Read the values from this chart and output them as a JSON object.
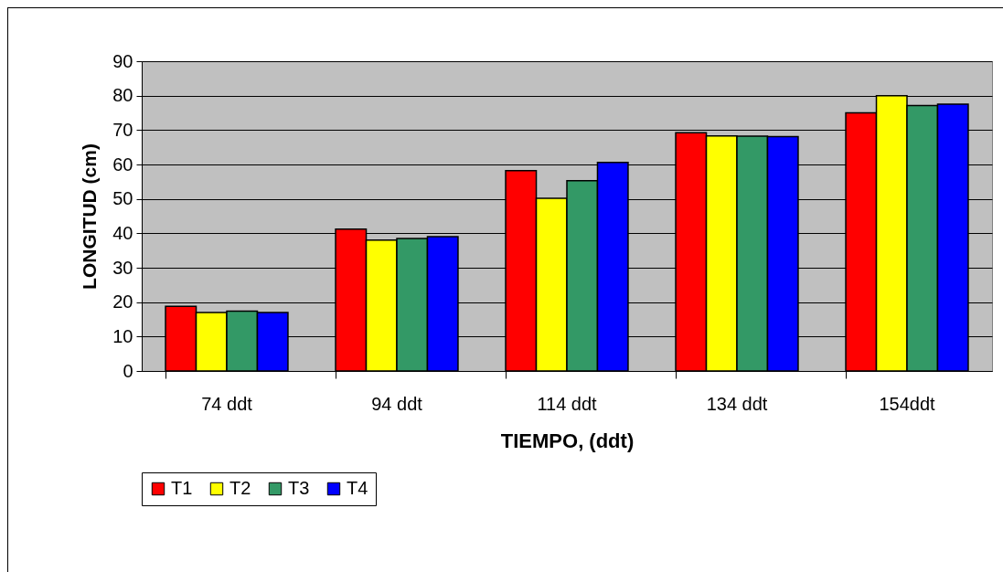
{
  "chart_data": {
    "type": "bar",
    "xlabel": "TIEMPO, (ddt)",
    "ylabel": "LONGITUD (cm)",
    "categories": [
      "74 ddt",
      "94 ddt",
      "114 ddt",
      "134 ddt",
      "154ddt"
    ],
    "series": [
      {
        "name": "T1",
        "color": "#ff0000",
        "values": [
          18.8,
          41.2,
          58.2,
          69.2,
          75
        ]
      },
      {
        "name": "T2",
        "color": "#ffff00",
        "values": [
          17,
          38,
          50.2,
          68.3,
          80
        ]
      },
      {
        "name": "T3",
        "color": "#339966",
        "values": [
          17.4,
          38.5,
          55.3,
          68.2,
          77.1
        ]
      },
      {
        "name": "T4",
        "color": "#0000ff",
        "values": [
          17,
          39,
          60.6,
          68.1,
          77.5
        ]
      }
    ],
    "ylim": [
      0,
      90
    ],
    "yticks": [
      0,
      10,
      20,
      30,
      40,
      50,
      60,
      70,
      80,
      90
    ],
    "grid": "y",
    "legend": "bottom"
  }
}
